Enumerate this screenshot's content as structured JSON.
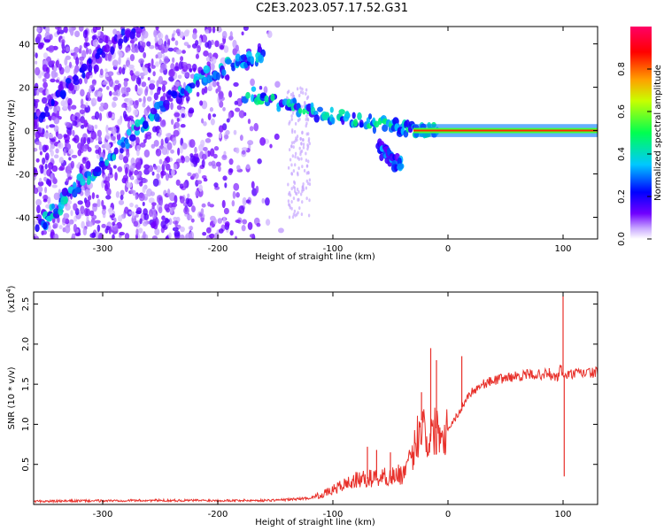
{
  "title": "C2E3.2023.057.17.52.G31",
  "chart_data": [
    {
      "type": "heatmap",
      "xlabel": "Height of straight line (km)",
      "ylabel": "Frequency (Hz)",
      "xlim": [
        -360,
        130
      ],
      "ylim": [
        -50,
        48
      ],
      "x_ticks": [
        -300,
        -200,
        -100,
        0,
        100
      ],
      "x_tick_labels": [
        "-300",
        "-200",
        "-100",
        "0",
        "100"
      ],
      "y_ticks": [
        -40,
        -20,
        0,
        20,
        40
      ],
      "y_tick_labels": [
        "-40",
        "-20",
        "0",
        "20",
        "40"
      ],
      "colorbar": {
        "label": "Normalized spectral amplitude",
        "range": [
          0,
          1
        ],
        "ticks": [
          0.0,
          0.2,
          0.4,
          0.6,
          0.8
        ],
        "tick_labels": [
          "0.0",
          "0.2",
          "0.4",
          "0.6",
          "0.8"
        ],
        "colormap": [
          "#ffffff",
          "#b388ff",
          "#6a00ff",
          "#0000ff",
          "#00c8ff",
          "#00ff40",
          "#ffff00",
          "#ff8000",
          "#ff0000",
          "#ff0066"
        ]
      },
      "features": [
        {
          "name": "rising-diagonal-streak",
          "x": [
            -355,
            -330,
            -300,
            -270,
            -240,
            -210,
            -180,
            -160
          ],
          "y": [
            -45,
            -30,
            -15,
            0,
            15,
            25,
            32,
            35
          ],
          "amplitude": 0.35
        },
        {
          "name": "upper-diagonal-streak",
          "x": [
            -360,
            -330,
            -300,
            -270,
            -250
          ],
          "y": [
            5,
            20,
            35,
            48,
            55
          ],
          "amplitude": 0.2
        },
        {
          "name": "converging-arc",
          "x": [
            -175,
            -140,
            -110,
            -80,
            -50,
            -30,
            -10
          ],
          "y": [
            17,
            12,
            8,
            5,
            2,
            1,
            0
          ],
          "amplitude": 0.4
        },
        {
          "name": "descending-branch",
          "x": [
            -60,
            -50,
            -40
          ],
          "y": [
            -8,
            -12,
            -17
          ],
          "amplitude": 0.3
        },
        {
          "name": "carrier-line",
          "x": [
            -30,
            130
          ],
          "y": [
            0,
            0
          ],
          "amplitude": 0.9
        }
      ]
    },
    {
      "type": "line",
      "xlabel": "Height of straight line (km)",
      "ylabel": "SNR (10 * v/v)",
      "y_scale_label": "(x10",
      "y_scale_exponent": "4",
      "y_scale_suffix": ")",
      "xlim": [
        -360,
        130
      ],
      "ylim": [
        0,
        2.65
      ],
      "x_ticks": [
        -300,
        -200,
        -100,
        0,
        100
      ],
      "x_tick_labels": [
        "-300",
        "-200",
        "-100",
        "0",
        "100"
      ],
      "y_ticks": [
        0.5,
        1.0,
        1.5,
        2.0,
        2.5
      ],
      "y_tick_labels": [
        "0.5",
        "1.0",
        "1.5",
        "2.0",
        "2.5"
      ],
      "series": [
        {
          "color": "#e8302a",
          "x": [
            -360,
            -340,
            -320,
            -300,
            -280,
            -260,
            -240,
            -220,
            -200,
            -180,
            -160,
            -140,
            -120,
            -110,
            -100,
            -90,
            -80,
            -70,
            -60,
            -50,
            -40,
            -35,
            -30,
            -25,
            -22,
            -20,
            -18,
            -15,
            -10,
            -5,
            0,
            5,
            10,
            15,
            20,
            25,
            30,
            40,
            50,
            60,
            70,
            80,
            85,
            90,
            95,
            98,
            100,
            102,
            105,
            110,
            120,
            130
          ],
          "y": [
            0.04,
            0.04,
            0.045,
            0.045,
            0.05,
            0.05,
            0.05,
            0.05,
            0.05,
            0.05,
            0.05,
            0.06,
            0.08,
            0.12,
            0.18,
            0.25,
            0.3,
            0.32,
            0.34,
            0.35,
            0.38,
            0.45,
            0.65,
            0.95,
            1.1,
            0.9,
            0.8,
            0.85,
            0.95,
            0.9,
            0.95,
            1.05,
            1.15,
            1.3,
            1.4,
            1.45,
            1.5,
            1.55,
            1.58,
            1.6,
            1.62,
            1.62,
            1.63,
            1.6,
            1.58,
            1.7,
            1.62,
            1.6,
            1.62,
            1.63,
            1.64,
            1.65
          ]
        }
      ],
      "spikes": [
        {
          "x": -70,
          "y": 0.72
        },
        {
          "x": -62,
          "y": 0.68
        },
        {
          "x": -50,
          "y": 0.65
        },
        {
          "x": -23,
          "y": 1.4
        },
        {
          "x": -15,
          "y": 1.95
        },
        {
          "x": -10,
          "y": 1.8
        },
        {
          "x": 12,
          "y": 1.85
        },
        {
          "x": 88,
          "y": 1.7
        },
        {
          "x": 100,
          "y": 2.6
        },
        {
          "x": 101,
          "y": 0.35
        }
      ]
    }
  ]
}
